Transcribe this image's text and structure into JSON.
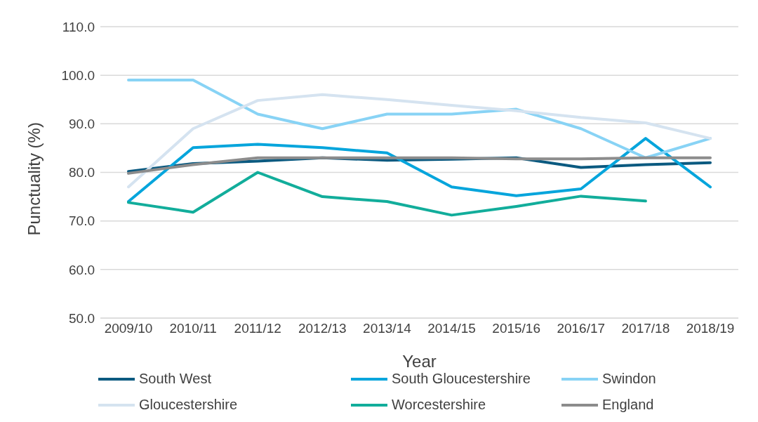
{
  "chart_data": {
    "type": "line",
    "xlabel": "Year",
    "ylabel": "Punctuality (%)",
    "categories": [
      "2009/10",
      "2010/11",
      "2011/12",
      "2012/13",
      "2013/14",
      "2014/15",
      "2015/16",
      "2016/17",
      "2017/18",
      "2018/19"
    ],
    "series": [
      {
        "name": "South West",
        "color": "#0b5a80",
        "values": [
          80.2,
          81.8,
          82.3,
          83.0,
          82.5,
          82.7,
          83.0,
          81.0,
          81.6,
          82.0
        ]
      },
      {
        "name": "South Gloucestershire",
        "color": "#06a5dc",
        "values": [
          74.0,
          85.1,
          85.8,
          85.1,
          84.0,
          77.0,
          75.2,
          76.6,
          87.0,
          77.0
        ]
      },
      {
        "name": "Swindon",
        "color": "#88d3f5",
        "values": [
          99.0,
          99.0,
          92.0,
          89.0,
          92.0,
          92.0,
          93.0,
          89.0,
          83.0,
          87.0
        ]
      },
      {
        "name": "Gloucestershire",
        "color": "#d5e3f0",
        "values": [
          77.0,
          89.0,
          94.8,
          96.0,
          95.0,
          93.8,
          92.7,
          91.3,
          90.2,
          87.0
        ]
      },
      {
        "name": "Worcestershire",
        "color": "#12ad9b",
        "values": [
          73.8,
          71.8,
          80.0,
          75.0,
          74.0,
          71.2,
          73.0,
          75.1,
          74.1,
          null
        ]
      },
      {
        "name": "England",
        "color": "#8c8c8c",
        "values": [
          79.8,
          81.6,
          83.0,
          83.0,
          83.0,
          83.0,
          82.8,
          82.8,
          83.0,
          83.0
        ]
      }
    ],
    "ylim": [
      50,
      110
    ],
    "yticks": [
      {
        "value": 50,
        "label": "50.0"
      },
      {
        "value": 60,
        "label": "60.0"
      },
      {
        "value": 70,
        "label": "70.0"
      },
      {
        "value": 80,
        "label": "80.0"
      },
      {
        "value": 90,
        "label": "90.0"
      },
      {
        "value": 100,
        "label": "100.0"
      },
      {
        "value": 110,
        "label": "110.0"
      }
    ],
    "grid": "y",
    "legend": "bottom",
    "marker": "none",
    "line_style": "solid"
  }
}
